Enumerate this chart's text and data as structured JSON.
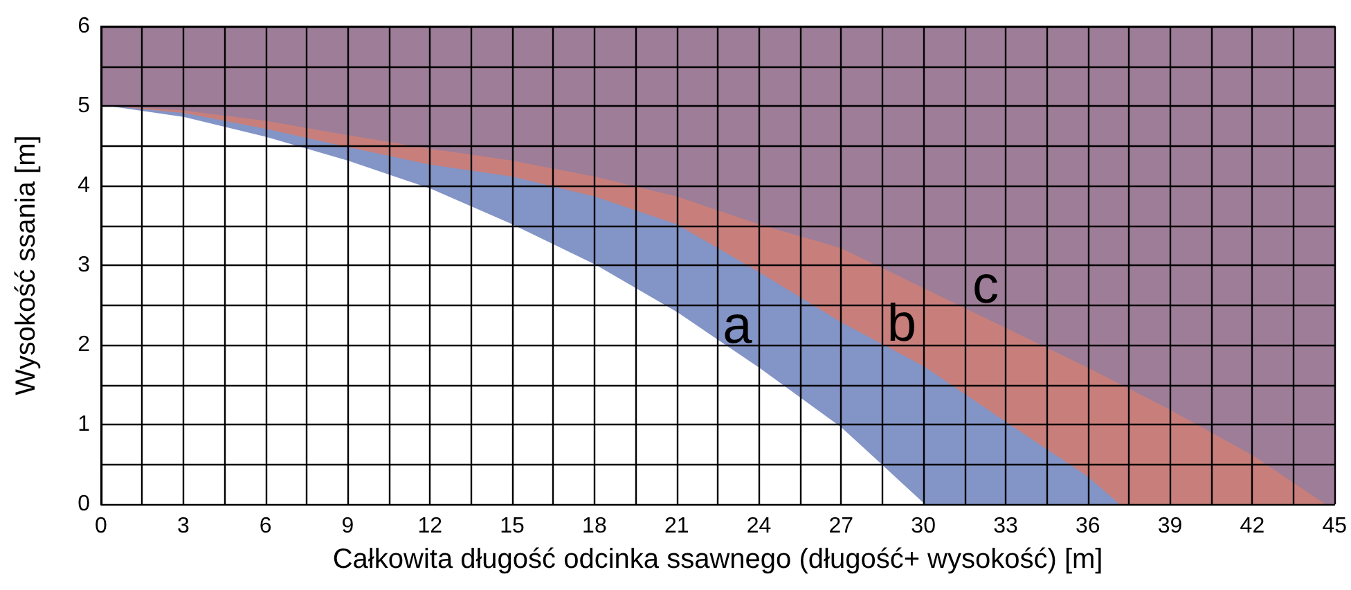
{
  "chart_data": {
    "type": "area",
    "xlabel": "Całkowita długość odcinka ssawnego (długość+ wysokość) [m]",
    "ylabel": "Wysokość ssania [m]",
    "series": [
      {
        "color": "#ffffff",
        "x": [
          0,
          3,
          6,
          9,
          12,
          15,
          18,
          21,
          24,
          27,
          30
        ],
        "values": [
          5,
          4.85,
          4.6,
          4.3,
          3.95,
          3.5,
          3.0,
          2.4,
          1.7,
          0.95,
          0
        ]
      },
      {
        "color": "#8394c6",
        "x": [
          0,
          3,
          6,
          9,
          12,
          15,
          18,
          21,
          24,
          27,
          30,
          33,
          36,
          37.1
        ],
        "values": [
          5,
          4.9,
          4.7,
          4.47,
          4.25,
          4.1,
          3.85,
          3.5,
          2.9,
          2.27,
          1.72,
          1.02,
          0.33,
          0
        ]
      },
      {
        "color": "#c87f7b",
        "x": [
          0,
          3,
          6,
          9,
          12,
          15,
          18,
          21,
          24,
          27,
          30,
          33,
          36,
          39,
          42,
          44.6
        ],
        "values": [
          5,
          4.93,
          4.8,
          4.62,
          4.45,
          4.3,
          4.1,
          3.85,
          3.5,
          3.2,
          2.7,
          2.2,
          1.7,
          1.17,
          0.6,
          0
        ]
      }
    ],
    "annotations": [
      {
        "text": "a",
        "x": 24,
        "y": 1.7
      },
      {
        "text": "b",
        "x": 30,
        "y": 1.72
      },
      {
        "text": "c",
        "x": 33,
        "y": 2.2
      }
    ],
    "bands": [
      {
        "axis": "y",
        "from": 0,
        "to": 6,
        "color": "#9e7d98"
      }
    ],
    "xlim": [
      0,
      45
    ],
    "xticks": [
      0,
      {
        "value": 1.5,
        "label": null
      },
      3,
      {
        "value": 4.5,
        "label": null
      },
      6,
      {
        "value": 7.5,
        "label": null
      },
      9,
      {
        "value": 10.5,
        "label": null
      },
      12,
      {
        "value": 13.5,
        "label": null
      },
      15,
      {
        "value": 16.5,
        "label": null
      },
      18,
      {
        "value": 19.5,
        "label": null
      },
      21,
      {
        "value": 22.5,
        "label": null
      },
      24,
      {
        "value": 25.5,
        "label": null
      },
      27,
      {
        "value": 28.5,
        "label": null
      },
      30,
      {
        "value": 31.5,
        "label": null
      },
      33,
      {
        "value": 34.5,
        "label": null
      },
      36,
      {
        "value": 37.5,
        "label": null
      },
      39,
      {
        "value": 40.5,
        "label": null
      },
      42,
      {
        "value": 43.5,
        "label": null
      },
      45
    ],
    "ylim": [
      0,
      6
    ],
    "yticks": [
      0,
      {
        "value": 0.5,
        "label": null
      },
      1,
      {
        "value": 1.5,
        "label": null
      },
      2,
      {
        "value": 2.5,
        "label": null
      },
      3,
      {
        "value": 3.5,
        "label": null
      },
      4,
      {
        "value": 4.5,
        "label": null
      },
      5,
      {
        "value": 5.5,
        "label": null
      },
      6
    ],
    "grid": true,
    "marker": "none",
    "line_style": "solid"
  }
}
